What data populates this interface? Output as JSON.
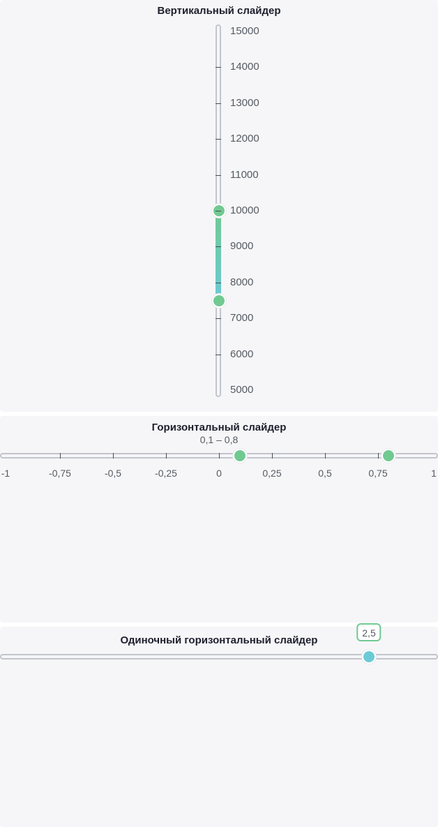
{
  "vertical": {
    "title": "Вертикальный слайдер",
    "min": 5000,
    "max": 15000,
    "value_low": 7500,
    "value_high": 10000,
    "ticks": [
      "15000",
      "14000",
      "13000",
      "12000",
      "11000",
      "10000",
      "9000",
      "8000",
      "7000",
      "6000",
      "5000"
    ]
  },
  "horizontal": {
    "title": "Горизонтальный слайдер",
    "range_text": "0,1 – 0,8",
    "min": -1,
    "max": 1,
    "value_low": 0.1,
    "value_high": 0.8,
    "ticks": [
      "-1",
      "-0,75",
      "-0,5",
      "-0,25",
      "0",
      "0,25",
      "0,5",
      "0,75",
      "1"
    ]
  },
  "single": {
    "title": "Одиночный горизонтальный слайдер",
    "min": -1,
    "max": 4,
    "value": 2.5,
    "tooltip": "2,5"
  }
}
